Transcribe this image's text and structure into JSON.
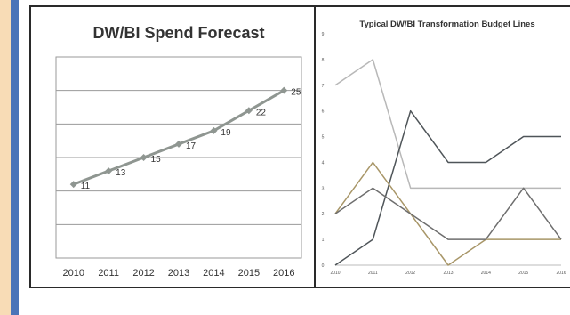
{
  "colors": {
    "background": "#fdebd0",
    "accent_bar": "#4a74b8",
    "left_series": "#8f9691",
    "grid": "#9a9a9a"
  },
  "chart_data": [
    {
      "type": "line",
      "title": "DW/BI Spend Forecast",
      "x": [
        "2010",
        "2011",
        "2012",
        "2013",
        "2014",
        "2015",
        "2016"
      ],
      "series": [
        {
          "values": [
            11,
            13,
            15,
            17,
            19,
            22,
            25
          ],
          "color": "#8f9691",
          "marker": "diamond"
        }
      ],
      "data_labels": [
        "11",
        "13",
        "15",
        "17",
        "19",
        "22",
        "25"
      ],
      "ylim": [
        0,
        30
      ],
      "grid": true,
      "y_ticks_shown": false,
      "legend": "none"
    },
    {
      "type": "line",
      "title": "Typical DW/BI Transformation Budget Lines",
      "x": [
        "2010",
        "2011",
        "2012",
        "2013",
        "2014",
        "2015",
        "2016"
      ],
      "x_tick_labels": [
        "2010",
        "2011",
        "2012",
        "2013",
        "2014",
        "2015",
        "2016"
      ],
      "y_ticks": [
        "0",
        "1",
        "2",
        "3",
        "4",
        "5",
        "6",
        "7",
        "8",
        "9"
      ],
      "ylim": [
        0,
        9
      ],
      "grid": false,
      "legend": "none",
      "series": [
        {
          "values": [
            7,
            8,
            3,
            3,
            3,
            3,
            3
          ],
          "color": "#b8b8b8"
        },
        {
          "values": [
            0,
            1,
            6,
            4,
            4,
            5,
            5
          ],
          "color": "#4f5559"
        },
        {
          "values": [
            2,
            4,
            2,
            0,
            1,
            1,
            1
          ],
          "color": "#a89668"
        },
        {
          "values": [
            2,
            3,
            2,
            1,
            1,
            3,
            1
          ],
          "color": "#6e6e6e"
        }
      ]
    }
  ]
}
